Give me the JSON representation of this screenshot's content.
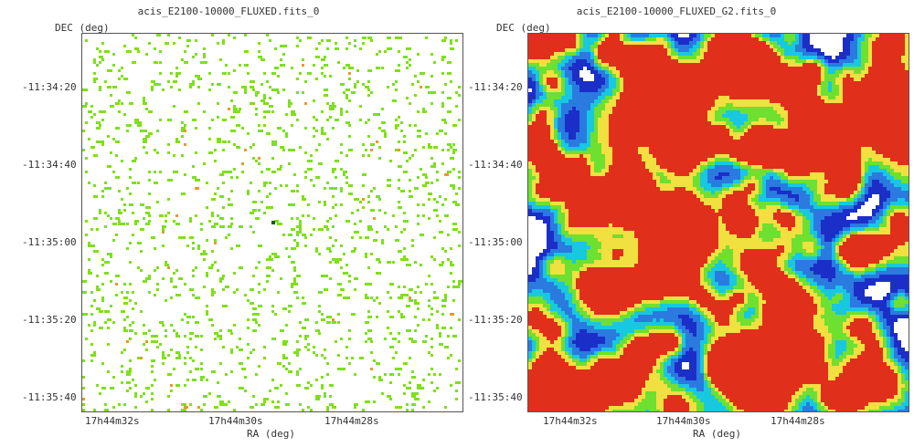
{
  "panels": [
    {
      "title": "acis_E2100-10000_FLUXED.fits_0",
      "y_axis_label": "DEC (deg)",
      "x_axis_label": "RA (deg)",
      "y_ticks": [
        "-11:34:20",
        "-11:34:40",
        "-11:35:00",
        "-11:35:20",
        "-11:35:40"
      ],
      "x_ticks": [
        "17h44m32s",
        "17h44m30s",
        "17h44m28s"
      ],
      "image_style": "sparse-pixels",
      "colors": {
        "pixel": "#7ee01a",
        "hot": "#e89a2a",
        "peak": "#1a5c1a"
      }
    },
    {
      "title": "acis_E2100-10000_FLUXED_G2.fits_0",
      "y_axis_label": "DEC (deg)",
      "x_axis_label": "RA (deg)",
      "y_ticks": [
        "-11:34:20",
        "-11:34:40",
        "-11:35:00",
        "-11:35:20",
        "-11:35:40"
      ],
      "x_ticks": [
        "17h44m32s",
        "17h44m30s",
        "17h44m28s"
      ],
      "image_style": "smoothed-heatmap",
      "colors": {
        "low": "#1c2ec8",
        "mid": "#18c8e0",
        "high": "#6ee030",
        "hot": "#f0e040",
        "peak": "#e0301c"
      }
    }
  ]
}
